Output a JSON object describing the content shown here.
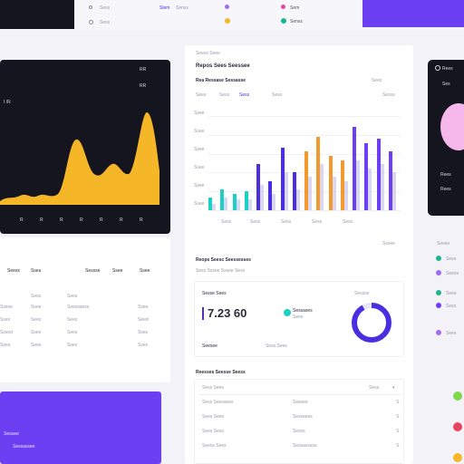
{
  "colors": {
    "dark": "#15151f",
    "violet": "#6d3ff2",
    "amber": "#f5b628",
    "teal": "#1bd1c6",
    "indigo": "#4a2fe0",
    "orange": "#f29a2e",
    "pink": "#f6b7ea"
  },
  "top_strip": {
    "item_a": "Sess",
    "item_b": "Slem",
    "item_c": "Senss",
    "item_d": "Sem"
  },
  "left_chart": {
    "title_left": "I /R",
    "corner_a": "RR",
    "corner_b": "RR",
    "x_ticks": [
      "R",
      "R",
      "R",
      "R",
      "R",
      "R",
      "R",
      "R"
    ]
  },
  "left_table": {
    "headers": [
      "Seess",
      "Sseu",
      "Sessse",
      "Ssee"
    ],
    "rows": [
      [
        "Sess",
        "Sees",
        "Ssees",
        ""
      ],
      [
        "Ssese",
        "Ssee",
        "Seesssess",
        "Ssee"
      ],
      [
        "Sses",
        "Sees",
        "Sees",
        "Seed"
      ],
      [
        "Sssed",
        "Sses",
        "Sees",
        "Sses"
      ],
      [
        "Sees",
        "Sees",
        "Sses",
        "Sses"
      ]
    ]
  },
  "left_violet": {
    "line1": "Sesuee",
    "line2": "Sessassee"
  },
  "center_card": {
    "breadcrumb": "Seess  Sees",
    "title": "Repos Sees Seessee",
    "subtitle": "Rea Ressase Sessasse",
    "filters": [
      "Sees",
      "Sess",
      "Sess",
      "Sess"
    ],
    "right_filter_a": "Sees",
    "right_filter_b": "Sesss",
    "y_ticks": [
      "Ssee",
      "Ssee",
      "Ssee",
      "Ssee",
      "Ssee",
      "Ssee"
    ],
    "x_ticks": [
      "Sess",
      "Sess",
      "Sess",
      "Sess",
      "Sess"
    ],
    "chart_footer": "Sssee",
    "section_title": "Reops Seesc Seessesses",
    "section_subtitle": "Sess Sssee Sssee Sess",
    "stat": {
      "label": "Sesse Sees",
      "value": "7.23 60",
      "teal_label": "Sessases",
      "teal_sub": "Sees",
      "donut_label": "Sessse",
      "donut_fraction": 0.92,
      "footer_a": "Seesee",
      "footer_b": "Sess Sees"
    },
    "table_title": "Reesses Seesse Seess",
    "table_header_a": "Sess Sees",
    "table_header_b": "Sess",
    "table_rows": [
      [
        "Sess  Seessees",
        "Ssesee",
        "S"
      ],
      [
        "Sees Sees",
        "Sesseess",
        "S"
      ],
      [
        "Sees Sess",
        "Sesss",
        "S"
      ],
      [
        "Seess Sees",
        "Sessassess",
        "S"
      ]
    ]
  },
  "right_panel": {
    "header_a": "Rees",
    "header_b": "Ses",
    "footer": "Rees",
    "list_title": "Sesee",
    "items": [
      "Sees",
      "Seees",
      "Seee",
      "Sees",
      "Sees"
    ]
  },
  "chart_data": {
    "type": "bar",
    "categories": [
      "1",
      "2",
      "3",
      "4",
      "5",
      "6",
      "7",
      "8",
      "9",
      "10",
      "11",
      "12",
      "13",
      "14",
      "15",
      "16"
    ],
    "series": [
      {
        "values": [
          6,
          10,
          8,
          9,
          22,
          14,
          30,
          18,
          28,
          35,
          26,
          24,
          40,
          32,
          34,
          28
        ]
      },
      {
        "values": [
          3,
          6,
          5,
          5,
          12,
          8,
          18,
          10,
          16,
          22,
          16,
          14,
          24,
          20,
          22,
          18
        ]
      }
    ],
    "ylim": [
      0,
      45
    ],
    "grid": true
  }
}
